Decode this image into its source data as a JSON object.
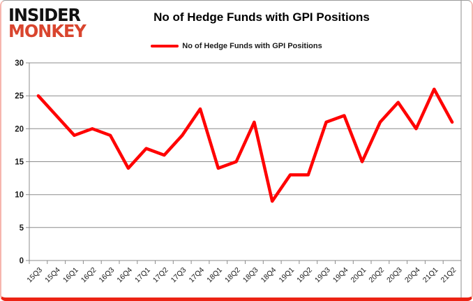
{
  "logo": {
    "line1": "INSIDER",
    "line2": "MONKEY",
    "accent_color": "#d9452e"
  },
  "header": {
    "title": "No of Hedge Funds with GPI Positions"
  },
  "legend": {
    "label": "No of Hedge Funds with GPI Positions",
    "swatch_color": "#ff0000"
  },
  "colors": {
    "series": "#ff0000",
    "grid": "#8c8c8c",
    "axis_text": "#1a1a1a",
    "border_bottom": "#ec2213",
    "border_sides": "#f6b6ae"
  },
  "chart_data": {
    "type": "line",
    "title": "No of Hedge Funds with GPI Positions",
    "categories": [
      "15Q3",
      "15Q4",
      "16Q1",
      "16Q2",
      "16Q3",
      "16Q4",
      "17Q1",
      "17Q2",
      "17Q3",
      "17Q4",
      "18Q1",
      "18Q2",
      "18Q3",
      "18Q4",
      "19Q1",
      "19Q2",
      "19Q3",
      "19Q4",
      "20Q1",
      "20Q2",
      "20Q3",
      "20Q4",
      "21Q1",
      "21Q2"
    ],
    "series": [
      {
        "name": "No of Hedge Funds with GPI Positions",
        "color": "#ff0000",
        "values": [
          25,
          22,
          19,
          20,
          19,
          14,
          17,
          16,
          19,
          23,
          14,
          15,
          21,
          9,
          13,
          13,
          21,
          22,
          15,
          21,
          24,
          20,
          26,
          21
        ]
      }
    ],
    "xlabel": "",
    "ylabel": "",
    "ylim": [
      0,
      30
    ],
    "yticks": [
      0,
      5,
      10,
      15,
      20,
      25,
      30
    ],
    "grid": true,
    "legend_position": "top-center"
  }
}
